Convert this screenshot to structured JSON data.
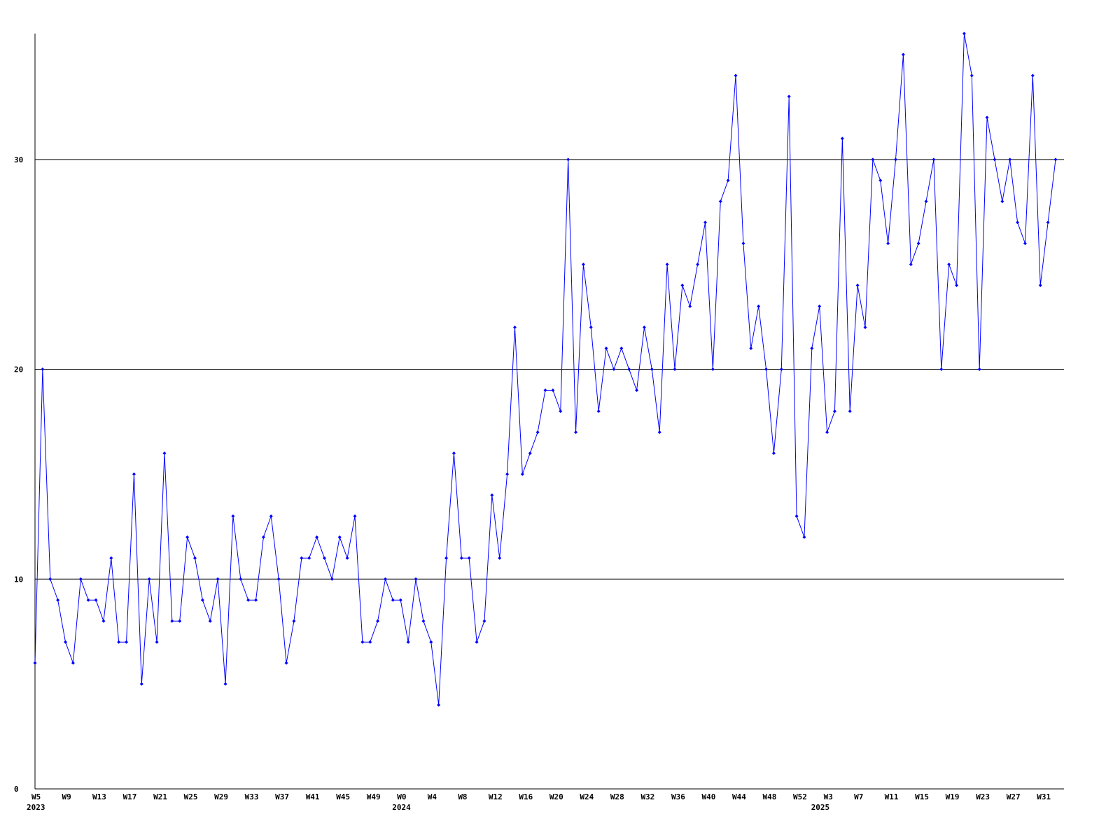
{
  "chart_data": {
    "type": "line",
    "categories": [
      "W5",
      null,
      null,
      null,
      "W9",
      null,
      null,
      null,
      "W13",
      null,
      null,
      null,
      "W17",
      null,
      null,
      null,
      "W21",
      null,
      null,
      null,
      "W25",
      null,
      null,
      null,
      "W29",
      null,
      null,
      null,
      "W33",
      null,
      null,
      null,
      "W37",
      null,
      null,
      null,
      "W41",
      null,
      null,
      null,
      "W45",
      null,
      null,
      null,
      "W49",
      null,
      null,
      null,
      "W0",
      null,
      null,
      null,
      "W4",
      null,
      null,
      null,
      "W8",
      null,
      null,
      null,
      "W12",
      null,
      null,
      null,
      "W16",
      null,
      null,
      null,
      "W20",
      null,
      null,
      null,
      "W24",
      null,
      null,
      null,
      "W28",
      null,
      null,
      null,
      "W32",
      null,
      null,
      null,
      "W36",
      null,
      null,
      null,
      "W40",
      null,
      null,
      null,
      "W44",
      null,
      null,
      null,
      "W48",
      null,
      null,
      null,
      "W52",
      null,
      null,
      null,
      "W3",
      null,
      null,
      null,
      "W7",
      null,
      null,
      null,
      "W11",
      null,
      null,
      null,
      "W15",
      null,
      null,
      null,
      "W19",
      null,
      null,
      null,
      "W23",
      null,
      null,
      null,
      "W27",
      null,
      null,
      null,
      "W31",
      null,
      null
    ],
    "years": [
      "2023",
      null,
      null,
      null,
      null,
      null,
      null,
      null,
      null,
      null,
      null,
      null,
      null,
      null,
      null,
      null,
      null,
      null,
      null,
      null,
      null,
      null,
      null,
      null,
      null,
      null,
      null,
      null,
      null,
      null,
      null,
      null,
      null,
      null,
      null,
      null,
      null,
      null,
      null,
      null,
      null,
      null,
      null,
      null,
      null,
      null,
      null,
      null,
      "2024",
      null,
      null,
      null,
      null,
      null,
      null,
      null,
      null,
      null,
      null,
      null,
      null,
      null,
      null,
      null,
      null,
      null,
      null,
      null,
      null,
      null,
      null,
      null,
      null,
      null,
      null,
      null,
      null,
      null,
      null,
      null,
      null,
      null,
      null,
      null,
      null,
      null,
      null,
      null,
      null,
      null,
      null,
      null,
      null,
      null,
      null,
      null,
      null,
      null,
      null,
      null,
      null,
      null,
      null,
      "2025",
      null,
      null,
      null,
      null,
      null,
      null,
      null,
      null,
      null,
      null,
      null,
      null,
      null,
      null,
      null,
      null,
      null,
      null,
      null,
      null,
      null,
      null,
      null,
      null,
      null,
      null,
      null,
      null,
      null,
      null,
      null,
      null
    ],
    "series": [
      {
        "color": "#0000ff",
        "values": [
          6,
          20,
          10,
          9,
          7,
          6,
          10,
          9,
          9,
          8,
          11,
          7,
          7,
          15,
          5,
          10,
          7,
          16,
          8,
          8,
          12,
          11,
          9,
          8,
          10,
          5,
          13,
          10,
          9,
          9,
          12,
          13,
          10,
          6,
          8,
          11,
          11,
          12,
          11,
          10,
          12,
          11,
          13,
          7,
          7,
          8,
          10,
          9,
          9,
          7,
          10,
          8,
          7,
          4,
          11,
          16,
          11,
          11,
          7,
          8,
          14,
          11,
          15,
          22,
          15,
          16,
          17,
          19,
          19,
          18,
          30,
          17,
          25,
          22,
          18,
          21,
          20,
          21,
          20,
          19,
          22,
          20,
          17,
          25,
          20,
          24,
          23,
          25,
          27,
          20,
          28,
          29,
          34,
          26,
          21,
          23,
          20,
          16,
          20,
          33,
          13,
          12,
          21,
          23,
          17,
          18,
          31,
          18,
          24,
          22,
          30,
          29,
          26,
          30,
          35,
          25,
          26,
          28,
          30,
          20,
          25,
          24,
          36,
          34,
          20,
          32,
          30,
          28,
          30,
          27,
          26,
          34,
          24,
          27,
          30
        ]
      }
    ],
    "ylim": [
      0,
      36
    ],
    "yticks": [
      0,
      10,
      20,
      30
    ],
    "grid": true
  }
}
